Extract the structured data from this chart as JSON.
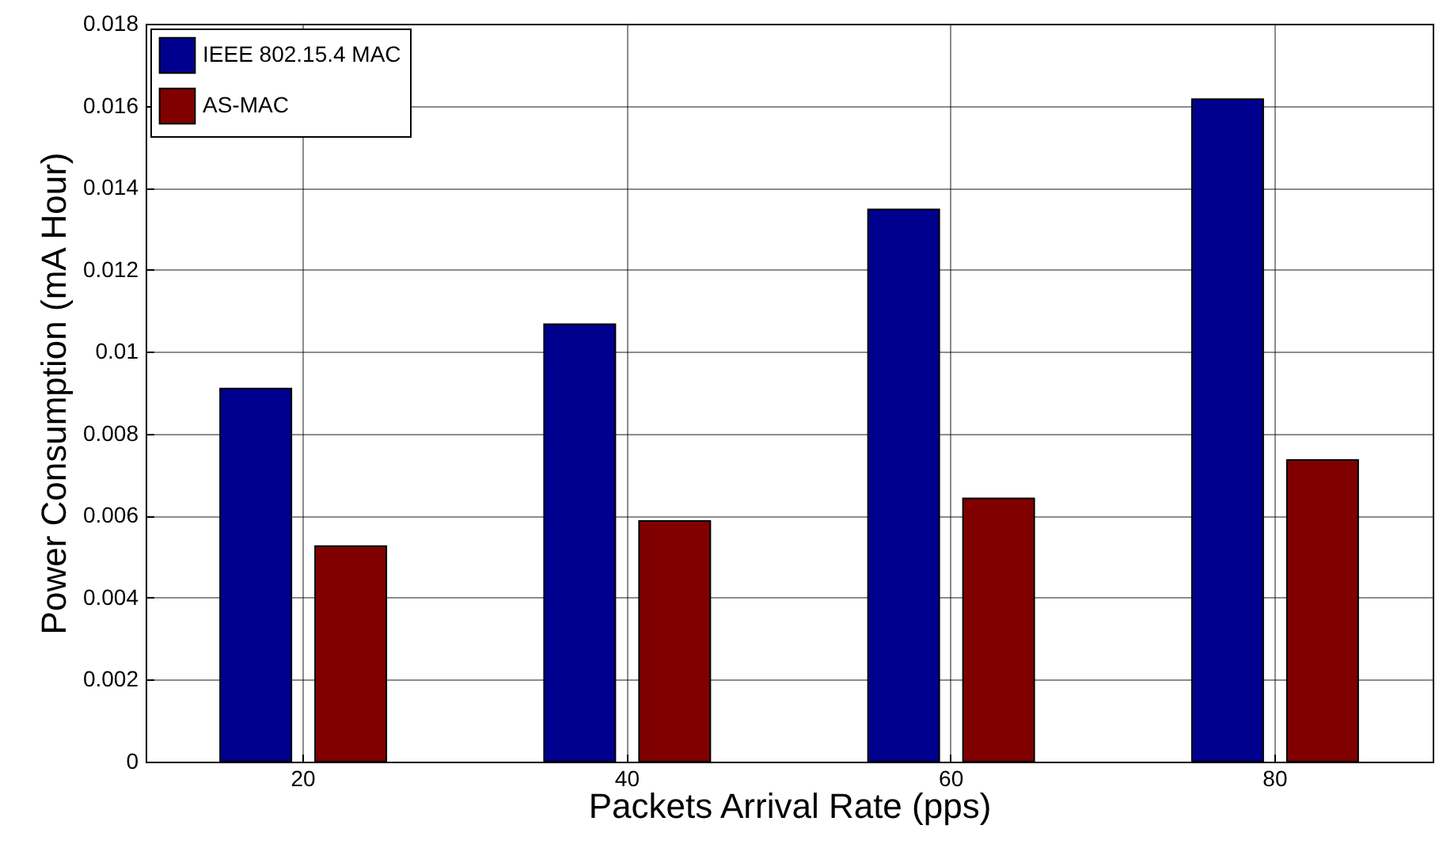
{
  "chart_data": {
    "type": "bar",
    "xlabel": "Packets Arrival Rate (pps)",
    "ylabel": "Power Consumption (mA Hour)",
    "categories": [
      "20",
      "40",
      "60",
      "80"
    ],
    "series": [
      {
        "name": "IEEE 802.15.4 MAC",
        "color": "#00008f",
        "values": [
          0.0091,
          0.01067,
          0.01347,
          0.01616
        ]
      },
      {
        "name": "AS-MAC",
        "color": "#800000",
        "values": [
          0.00526,
          0.00587,
          0.00642,
          0.00736
        ]
      }
    ],
    "ylim": [
      0,
      0.018
    ],
    "yticks": [
      0,
      0.002,
      0.004,
      0.006,
      0.008,
      0.01,
      0.012,
      0.014,
      0.016,
      0.018
    ],
    "grid": true,
    "legend": "top left"
  }
}
